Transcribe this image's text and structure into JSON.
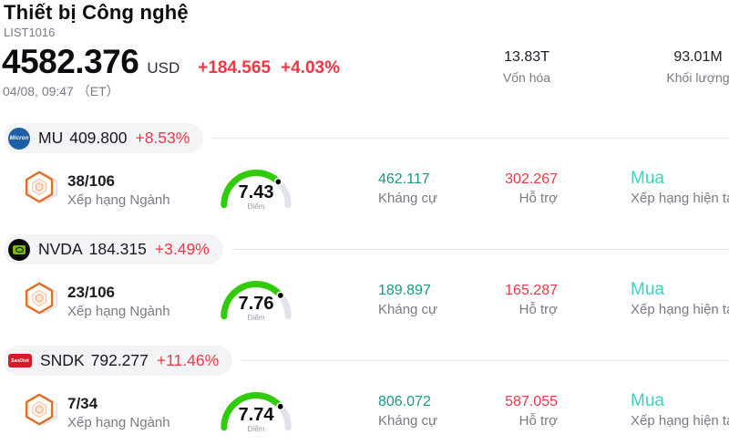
{
  "header": {
    "title": "Thiết bị Công nghệ",
    "list_id": "LIST1016",
    "price": "4582.376",
    "currency": "USD",
    "change": "+184.565",
    "change_pct": "+4.03%",
    "datetime": "04/08, 09:47 （ET）",
    "stats": [
      {
        "value": "13.83T",
        "label": "Vốn hóa"
      },
      {
        "value": "93.01M",
        "label": "Khối lượng"
      }
    ]
  },
  "labels": {
    "industry_rank": "Xếp hạng Ngành",
    "score": "Điểm",
    "resistance": "Kháng cự",
    "support": "Hỗ trợ",
    "current_rating": "Xếp hạng hiện tại"
  },
  "rows": [
    {
      "ticker": "MU",
      "logo_text": "Micron",
      "price": "409.800",
      "change_pct": "+8.53%",
      "rank": "38/106",
      "score": 7.43,
      "resistance": "462.117",
      "support": "302.267",
      "rating": "Mua"
    },
    {
      "ticker": "NVDA",
      "price": "184.315",
      "change_pct": "+3.49%",
      "rank": "23/106",
      "score": 7.76,
      "resistance": "189.897",
      "support": "165.287",
      "rating": "Mua"
    },
    {
      "ticker": "SNDK",
      "logo_text": "SanDisk",
      "price": "792.277",
      "change_pct": "+11.46%",
      "rank": "7/34",
      "score": 7.74,
      "resistance": "806.072",
      "support": "587.055",
      "rating": "Mua"
    }
  ],
  "colors": {
    "red": "#f23645",
    "teal": "#149a84",
    "buy": "#3fd1c0",
    "gauge_green": "#32cb0c",
    "gauge_track": "#e1e3ea",
    "muted": "#787b86",
    "pill_bg": "#f3f4f6",
    "divider": "#eaebee",
    "hex_orange": "#e0702a"
  }
}
